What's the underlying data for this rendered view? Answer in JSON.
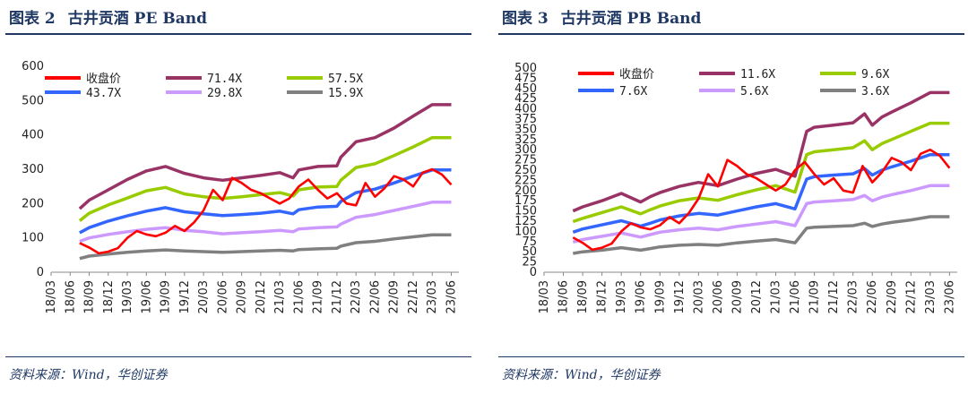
{
  "panels": [
    {
      "fig_label": "图表 2",
      "title": "古井贡酒  PE Band",
      "source": "资料来源：Wind，华创证券"
    },
    {
      "fig_label": "图表 3",
      "title": "古井贡酒  PB Band",
      "source": "资料来源：Wind，华创证券"
    }
  ],
  "chart_data": [
    {
      "type": "line",
      "title": "古井贡酒 PE Band",
      "xlabel": "",
      "ylabel": "",
      "ylim": [
        0,
        600
      ],
      "yticks": [
        0,
        100,
        200,
        300,
        400,
        500,
        600
      ],
      "x_tick_labels": [
        "18/03",
        "18/06",
        "18/09",
        "18/12",
        "19/03",
        "19/06",
        "19/09",
        "19/12",
        "20/03",
        "20/06",
        "20/09",
        "20/12",
        "21/03",
        "21/06",
        "21/09",
        "21/12",
        "22/03",
        "22/06",
        "22/09",
        "22/12",
        "23/03",
        "23/06"
      ],
      "x_range": [
        0,
        21.4
      ],
      "x_index": [
        1.5,
        2.0,
        3.0,
        4.0,
        5.0,
        6.0,
        7.0,
        8.0,
        9.0,
        10.0,
        11.0,
        12.0,
        12.7,
        13.0,
        14.0,
        15.0,
        15.2,
        16.0,
        17.0,
        18.0,
        19.0,
        20.0,
        21.0
      ],
      "series": [
        {
          "name": "71.4X",
          "color": "#993366",
          "values": [
            185,
            210,
            240,
            270,
            295,
            308,
            288,
            275,
            268,
            275,
            282,
            290,
            275,
            298,
            308,
            310,
            335,
            380,
            392,
            420,
            455,
            488,
            488
          ]
        },
        {
          "name": "57.5X",
          "color": "#99cc00",
          "values": [
            150,
            172,
            196,
            216,
            237,
            247,
            228,
            220,
            215,
            220,
            226,
            232,
            222,
            240,
            248,
            250,
            268,
            305,
            316,
            340,
            365,
            392,
            392
          ]
        },
        {
          "name": "43.7X",
          "color": "#3366ff",
          "values": [
            115,
            130,
            149,
            164,
            178,
            188,
            176,
            170,
            165,
            168,
            172,
            178,
            170,
            182,
            190,
            192,
            206,
            232,
            242,
            260,
            280,
            298,
            298
          ]
        },
        {
          "name": "29.8X",
          "color": "#cc99ff",
          "values": [
            90,
            100,
            110,
            118,
            125,
            130,
            122,
            118,
            112,
            115,
            118,
            122,
            118,
            126,
            130,
            132,
            140,
            160,
            168,
            180,
            192,
            204,
            204
          ]
        },
        {
          "name": "15.9X",
          "color": "#808080",
          "values": [
            40,
            47,
            53,
            58,
            62,
            65,
            62,
            60,
            58,
            60,
            62,
            64,
            62,
            66,
            68,
            70,
            76,
            86,
            90,
            97,
            103,
            109,
            109
          ]
        }
      ],
      "price": {
        "name": "收盘价",
        "color": "#ff0000",
        "x_index": [
          1.5,
          2.0,
          2.5,
          3.0,
          3.5,
          4.0,
          4.5,
          5.0,
          5.5,
          6.0,
          6.5,
          7.0,
          7.5,
          8.0,
          8.5,
          9.0,
          9.5,
          10.0,
          10.5,
          11.0,
          11.5,
          12.0,
          12.5,
          13.0,
          13.5,
          14.0,
          14.5,
          15.0,
          15.5,
          16.0,
          16.5,
          17.0,
          17.5,
          18.0,
          18.5,
          19.0,
          19.5,
          20.0,
          20.5,
          21.0
        ],
        "values": [
          85,
          72,
          55,
          60,
          70,
          100,
          120,
          110,
          105,
          115,
          135,
          120,
          145,
          180,
          240,
          210,
          275,
          260,
          240,
          230,
          215,
          200,
          215,
          250,
          270,
          240,
          215,
          230,
          200,
          195,
          260,
          220,
          245,
          280,
          270,
          250,
          290,
          300,
          285,
          255
        ]
      }
    },
    {
      "type": "line",
      "title": "古井贡酒 PB Band",
      "xlabel": "",
      "ylabel": "",
      "ylim": [
        0,
        500
      ],
      "yticks": [
        0,
        25,
        50,
        75,
        100,
        125,
        150,
        175,
        200,
        225,
        250,
        275,
        300,
        325,
        350,
        375,
        400,
        425,
        450,
        475,
        500
      ],
      "x_tick_labels": [
        "18/03",
        "18/06",
        "18/09",
        "18/12",
        "19/03",
        "19/06",
        "19/09",
        "19/12",
        "20/03",
        "20/06",
        "20/09",
        "20/12",
        "21/03",
        "21/06",
        "21/09",
        "21/12",
        "22/03",
        "22/06",
        "22/09",
        "22/12",
        "23/03",
        "23/06"
      ],
      "x_range": [
        0,
        21.4
      ],
      "x_index": [
        1.5,
        2.0,
        3.0,
        4.0,
        5.0,
        5.5,
        6.0,
        7.0,
        8.0,
        9.0,
        10.0,
        11.0,
        12.0,
        13.0,
        13.6,
        14.0,
        15.0,
        16.0,
        16.6,
        17.0,
        17.5,
        18.0,
        19.0,
        20.0,
        21.0
      ],
      "series": [
        {
          "name": "11.6X",
          "color": "#993366",
          "values": [
            150,
            160,
            175,
            193,
            172,
            185,
            195,
            210,
            220,
            212,
            228,
            242,
            252,
            235,
            345,
            355,
            360,
            366,
            388,
            360,
            380,
            392,
            415,
            440,
            440
          ]
        },
        {
          "name": "9.6X",
          "color": "#99cc00",
          "values": [
            124,
            132,
            146,
            160,
            143,
            153,
            162,
            175,
            182,
            176,
            190,
            202,
            212,
            196,
            288,
            295,
            300,
            305,
            322,
            300,
            315,
            325,
            345,
            365,
            365
          ]
        },
        {
          "name": "7.6X",
          "color": "#3366ff",
          "values": [
            98,
            106,
            116,
            126,
            113,
            120,
            128,
            138,
            144,
            140,
            150,
            160,
            168,
            155,
            228,
            234,
            238,
            241,
            254,
            238,
            250,
            258,
            272,
            288,
            288
          ]
        },
        {
          "name": "5.6X",
          "color": "#cc99ff",
          "values": [
            74,
            80,
            88,
            96,
            86,
            92,
            98,
            104,
            108,
            104,
            112,
            118,
            124,
            114,
            168,
            172,
            175,
            178,
            188,
            175,
            184,
            190,
            200,
            212,
            212
          ]
        },
        {
          "name": "3.6X",
          "color": "#808080",
          "values": [
            46,
            50,
            54,
            60,
            54,
            58,
            62,
            66,
            68,
            66,
            72,
            76,
            80,
            72,
            108,
            110,
            112,
            114,
            120,
            112,
            118,
            122,
            128,
            136,
            136
          ]
        }
      ],
      "price": {
        "name": "收盘价",
        "color": "#ff0000",
        "x_index": [
          1.5,
          2.0,
          2.5,
          3.0,
          3.5,
          4.0,
          4.5,
          5.0,
          5.5,
          6.0,
          6.5,
          7.0,
          7.5,
          8.0,
          8.5,
          9.0,
          9.5,
          10.0,
          10.5,
          11.0,
          11.5,
          12.0,
          12.5,
          13.0,
          13.5,
          14.0,
          14.5,
          15.0,
          15.5,
          16.0,
          16.5,
          17.0,
          17.5,
          18.0,
          18.5,
          19.0,
          19.5,
          20.0,
          20.5,
          21.0
        ],
        "values": [
          85,
          72,
          55,
          60,
          70,
          100,
          120,
          110,
          105,
          115,
          135,
          120,
          145,
          180,
          240,
          210,
          275,
          260,
          240,
          230,
          215,
          200,
          215,
          250,
          270,
          240,
          215,
          230,
          200,
          195,
          260,
          220,
          245,
          280,
          270,
          250,
          290,
          300,
          285,
          255
        ]
      }
    }
  ]
}
